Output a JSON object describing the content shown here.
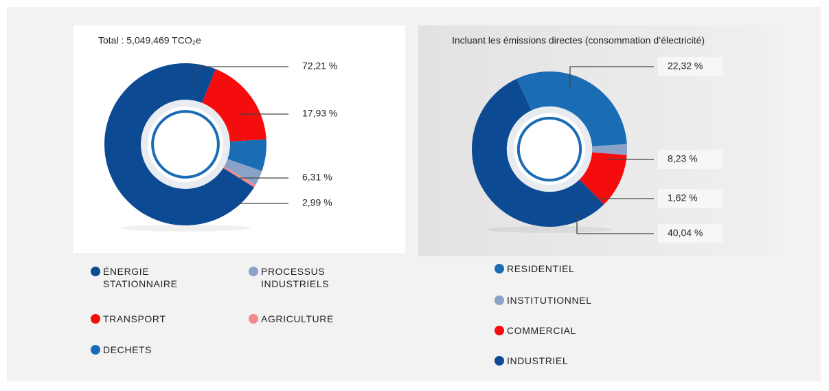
{
  "chart_data": [
    {
      "type": "pie",
      "title": "Total : 5,049,469 TCO₂e",
      "categories": [
        "ÉNERGIE STATIONNAIRE",
        "TRANSPORT",
        "DECHETS",
        "PROCESSUS INDUSTRIELS",
        "AGRICULTURE"
      ],
      "values": [
        72.21,
        17.93,
        6.31,
        2.99,
        0.56
      ],
      "value_labels": [
        "72,21 %",
        "17,93 %",
        "6,31 %",
        "2,99 %",
        null
      ],
      "colors": [
        "#0d4a94",
        "#f50d0d",
        "#1a6cb5",
        "#8aa2c8",
        "#f48a8a"
      ]
    },
    {
      "type": "pie",
      "title": "Incluant les émissions directes (consommation d’électricité)",
      "categories": [
        "RESIDENTIEL",
        "INSTITUTIONNEL",
        "COMMERCIAL",
        "INDUSTRIEL"
      ],
      "values": [
        22.32,
        1.62,
        8.23,
        40.04
      ],
      "value_labels": [
        "22,32 %",
        "1,62 %",
        "8,23 %",
        "40,04 %"
      ],
      "colors": [
        "#1a6cb5",
        "#8aa2c8",
        "#f50d0d",
        "#0d4a94"
      ]
    }
  ]
}
